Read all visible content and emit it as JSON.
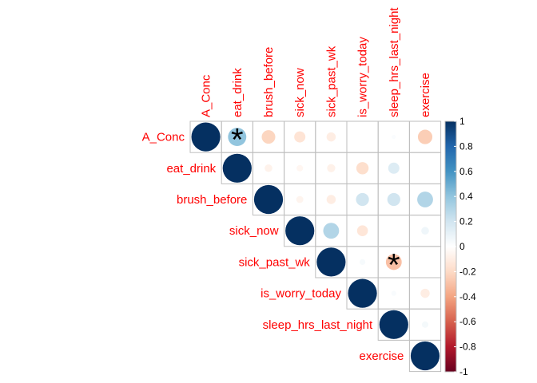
{
  "chart_data": {
    "type": "heatmap",
    "variables": [
      "A_Conc",
      "eat_drink",
      "brush_before",
      "sick_now",
      "sick_past_wk",
      "is_worry_today",
      "sleep_hrs_last_night",
      "exercise"
    ],
    "matrix": [
      [
        1.0,
        0.4,
        -0.22,
        -0.15,
        -0.1,
        0.0,
        0.02,
        -0.25
      ],
      [
        0.4,
        1.0,
        -0.07,
        -0.05,
        -0.08,
        -0.18,
        0.15,
        0.0
      ],
      [
        -0.22,
        -0.07,
        1.0,
        -0.06,
        -0.1,
        0.2,
        0.2,
        0.3
      ],
      [
        -0.15,
        -0.05,
        -0.06,
        1.0,
        0.3,
        -0.14,
        0.0,
        0.07
      ],
      [
        -0.1,
        -0.08,
        -0.1,
        0.3,
        1.0,
        0.04,
        -0.3,
        0.0
      ],
      [
        0.0,
        -0.18,
        0.2,
        -0.14,
        0.04,
        1.0,
        0.03,
        -0.1
      ],
      [
        0.02,
        0.15,
        0.2,
        0.0,
        -0.3,
        0.03,
        1.0,
        0.05
      ],
      [
        -0.25,
        0.0,
        0.3,
        0.07,
        0.0,
        -0.1,
        0.05,
        1.0
      ]
    ],
    "significance_marker": "*",
    "significant_cells": [
      [
        0,
        1
      ],
      [
        4,
        6
      ]
    ],
    "layout": "upper-triangle",
    "label_color": "#FF0000",
    "color_scale": {
      "min": -1,
      "max": 1,
      "negative_color": "#67001F",
      "mid_color": "#FFFFFF",
      "positive_color": "#053061",
      "ticks": [
        "1",
        "0.8",
        "0.6",
        "0.4",
        "0.2",
        "0",
        "-0.2",
        "-0.4",
        "-0.6",
        "-0.8",
        "-1"
      ]
    }
  }
}
